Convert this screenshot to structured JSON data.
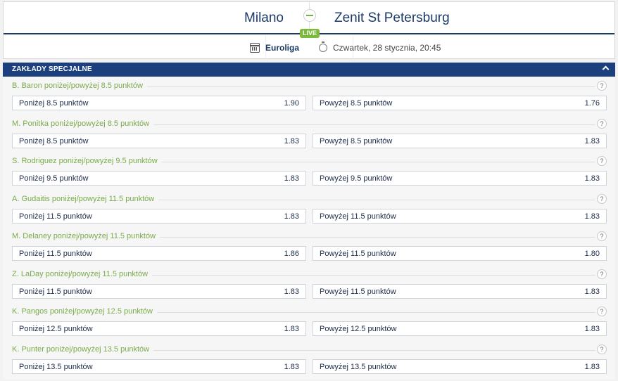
{
  "match": {
    "home": "Milano",
    "away": "Zenit St Petersburg",
    "live_label": "LIVE",
    "competition": "Euroliga",
    "datetime": "Czwartek, 28 stycznia, 20:45"
  },
  "section": {
    "title": "ZAKŁADY SPECJALNE"
  },
  "colors": {
    "header_blue": "#1c3f7d",
    "accent_green": "#7bab4a",
    "live_green": "#7cba3e"
  },
  "markets": [
    {
      "title": "B. Baron poniżej/powyżej 8.5 punktów",
      "under_label": "Poniżej 8.5 punktów",
      "under_odd": "1.90",
      "over_label": "Powyżej 8.5 punktów",
      "over_odd": "1.76"
    },
    {
      "title": "M. Ponitka poniżej/powyżej 8.5 punktów",
      "under_label": "Poniżej 8.5 punktów",
      "under_odd": "1.83",
      "over_label": "Powyżej 8.5 punktów",
      "over_odd": "1.83"
    },
    {
      "title": "S. Rodriguez poniżej/powyżej 9.5 punktów",
      "under_label": "Poniżej 9.5 punktów",
      "under_odd": "1.83",
      "over_label": "Powyżej 9.5 punktów",
      "over_odd": "1.83"
    },
    {
      "title": "A. Gudaitis poniżej/powyżej 11.5 punktów",
      "under_label": "Poniżej 11.5 punktów",
      "under_odd": "1.83",
      "over_label": "Powyżej 11.5 punktów",
      "over_odd": "1.83"
    },
    {
      "title": "M. Delaney poniżej/powyżej 11.5 punktów",
      "under_label": "Poniżej 11.5 punktów",
      "under_odd": "1.86",
      "over_label": "Powyżej 11.5 punktów",
      "over_odd": "1.80"
    },
    {
      "title": "Z. LaDay poniżej/powyżej 11.5 punktów",
      "under_label": "Poniżej 11.5 punktów",
      "under_odd": "1.83",
      "over_label": "Powyżej 11.5 punktów",
      "over_odd": "1.83"
    },
    {
      "title": "K. Pangos poniżej/powyżej 12.5 punktów",
      "under_label": "Poniżej 12.5 punktów",
      "under_odd": "1.83",
      "over_label": "Powyżej 12.5 punktów",
      "over_odd": "1.83"
    },
    {
      "title": "K. Punter poniżej/powyżej 13.5 punktów",
      "under_label": "Poniżej 13.5 punktów",
      "under_odd": "1.83",
      "over_label": "Powyżej 13.5 punktów",
      "over_odd": "1.83"
    }
  ],
  "help_glyph": "?"
}
